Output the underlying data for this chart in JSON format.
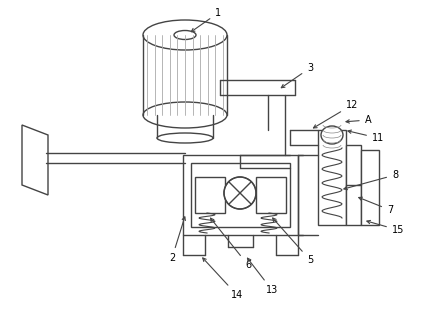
{
  "bg_color": "#ffffff",
  "lc": "#444444",
  "lw": 1.0,
  "fig_w": 4.43,
  "fig_h": 3.09,
  "dpi": 100
}
